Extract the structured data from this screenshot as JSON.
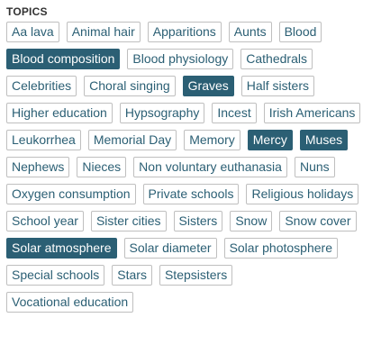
{
  "topics": {
    "heading": "TOPICS",
    "tags": [
      {
        "label": "Aa lava",
        "selected": false
      },
      {
        "label": "Animal hair",
        "selected": false
      },
      {
        "label": "Apparitions",
        "selected": false
      },
      {
        "label": "Aunts",
        "selected": false
      },
      {
        "label": "Blood",
        "selected": false
      },
      {
        "label": "Blood composition",
        "selected": true
      },
      {
        "label": "Blood physiology",
        "selected": false
      },
      {
        "label": "Cathedrals",
        "selected": false
      },
      {
        "label": "Celebrities",
        "selected": false
      },
      {
        "label": "Choral singing",
        "selected": false
      },
      {
        "label": "Graves",
        "selected": true
      },
      {
        "label": "Half sisters",
        "selected": false
      },
      {
        "label": "Higher education",
        "selected": false
      },
      {
        "label": "Hypsography",
        "selected": false
      },
      {
        "label": "Incest",
        "selected": false
      },
      {
        "label": "Irish Americans",
        "selected": false
      },
      {
        "label": "Leukorrhea",
        "selected": false
      },
      {
        "label": "Memorial Day",
        "selected": false
      },
      {
        "label": "Memory",
        "selected": false
      },
      {
        "label": "Mercy",
        "selected": true
      },
      {
        "label": "Muses",
        "selected": true
      },
      {
        "label": "Nephews",
        "selected": false
      },
      {
        "label": "Nieces",
        "selected": false
      },
      {
        "label": "Non voluntary euthanasia",
        "selected": false
      },
      {
        "label": "Nuns",
        "selected": false
      },
      {
        "label": "Oxygen consumption",
        "selected": false
      },
      {
        "label": "Private schools",
        "selected": false
      },
      {
        "label": "Religious holidays",
        "selected": false
      },
      {
        "label": "School year",
        "selected": false
      },
      {
        "label": "Sister cities",
        "selected": false
      },
      {
        "label": "Sisters",
        "selected": false
      },
      {
        "label": "Snow",
        "selected": false
      },
      {
        "label": "Snow cover",
        "selected": false
      },
      {
        "label": "Solar atmosphere",
        "selected": true
      },
      {
        "label": "Solar diameter",
        "selected": false
      },
      {
        "label": "Solar photosphere",
        "selected": false
      },
      {
        "label": "Special schools",
        "selected": false
      },
      {
        "label": "Stars",
        "selected": false
      },
      {
        "label": "Stepsisters",
        "selected": false
      },
      {
        "label": "Vocational education",
        "selected": false
      }
    ]
  },
  "colors": {
    "accent": "#2b5f74",
    "border": "#bfbfbf",
    "heading": "#333333"
  }
}
